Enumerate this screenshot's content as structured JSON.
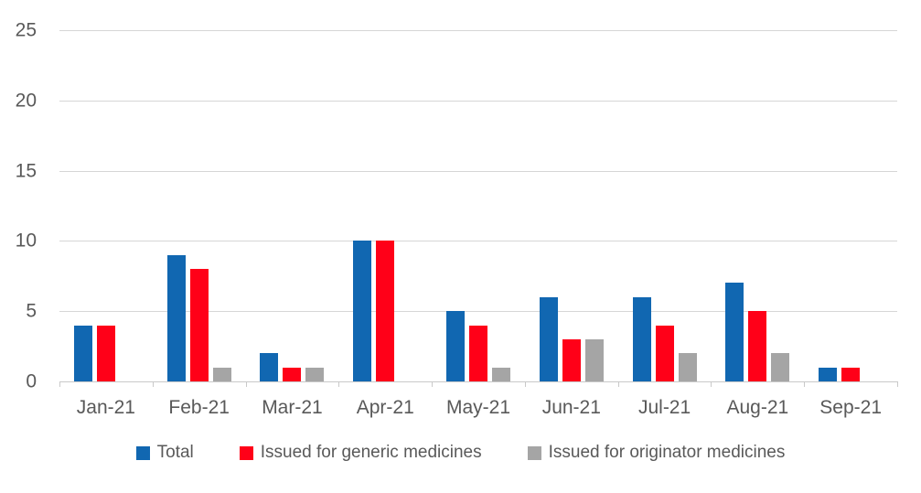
{
  "chart_data": {
    "type": "bar",
    "categories": [
      "Jan-21",
      "Feb-21",
      "Mar-21",
      "Apr-21",
      "May-21",
      "Jun-21",
      "Jul-21",
      "Aug-21",
      "Sep-21"
    ],
    "series": [
      {
        "name": "Total",
        "color": "#1167b1",
        "values": [
          4,
          9,
          2,
          10,
          5,
          6,
          6,
          7,
          1
        ]
      },
      {
        "name": "Issued for generic medicines",
        "color": "#ff0018",
        "values": [
          4,
          8,
          1,
          10,
          4,
          3,
          4,
          5,
          1
        ]
      },
      {
        "name": "Issued for originator medicines",
        "color": "#a5a5a5",
        "values": [
          0,
          1,
          1,
          0,
          1,
          3,
          2,
          2,
          0
        ]
      }
    ],
    "title": "",
    "xlabel": "",
    "ylabel": "",
    "ylim": [
      0,
      25
    ],
    "yticks": [
      0,
      5,
      10,
      15,
      20,
      25
    ],
    "grid": true,
    "gridline_color": "#d6d6d6",
    "axis_text_color": "#595959",
    "legend_position": "bottom"
  }
}
